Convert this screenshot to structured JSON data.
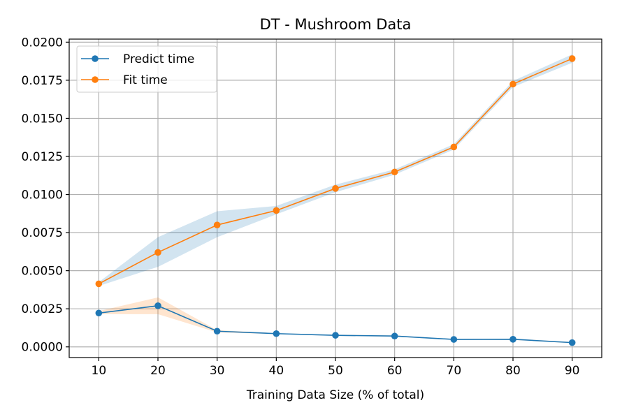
{
  "chart_data": {
    "type": "line",
    "title": "DT - Mushroom Data",
    "xlabel": "Training Data Size (% of total)",
    "ylabel": "",
    "xlim": [
      5,
      95
    ],
    "ylim": [
      -0.0007,
      0.0202
    ],
    "x_ticks": [
      "10",
      "20",
      "30",
      "40",
      "50",
      "60",
      "70",
      "80",
      "90"
    ],
    "y_ticks": [
      "0.0000",
      "0.0025",
      "0.0050",
      "0.0075",
      "0.0100",
      "0.0125",
      "0.0150",
      "0.0175",
      "0.0200"
    ],
    "grid": true,
    "legend_position": "top-left",
    "x": [
      10,
      20,
      30,
      40,
      50,
      60,
      70,
      80,
      90
    ],
    "series": [
      {
        "name": "Predict time",
        "color": "#1f77b4",
        "band_color": "#ff7f0e",
        "values": [
          0.00222,
          0.0027,
          0.00103,
          0.00087,
          0.00076,
          0.00071,
          0.00049,
          0.0005,
          0.00028
        ],
        "band_upper": [
          0.00235,
          0.00325,
          0.0011,
          0.0009,
          0.0008,
          0.00075,
          0.00052,
          0.00054,
          0.00032
        ],
        "band_lower": [
          0.00215,
          0.00215,
          0.00095,
          0.00084,
          0.00072,
          0.00067,
          0.00046,
          0.00046,
          0.00024
        ]
      },
      {
        "name": "Fit time",
        "color": "#ff7f0e",
        "band_color": "#1f77b4",
        "values": [
          0.00414,
          0.0062,
          0.008,
          0.00895,
          0.0104,
          0.01148,
          0.01312,
          0.01725,
          0.01892
        ],
        "band_upper": [
          0.00425,
          0.0072,
          0.0089,
          0.00925,
          0.01065,
          0.01165,
          0.0133,
          0.01745,
          0.0192
        ],
        "band_lower": [
          0.004,
          0.00525,
          0.0072,
          0.0087,
          0.01015,
          0.0113,
          0.01295,
          0.01705,
          0.01865
        ]
      }
    ]
  }
}
